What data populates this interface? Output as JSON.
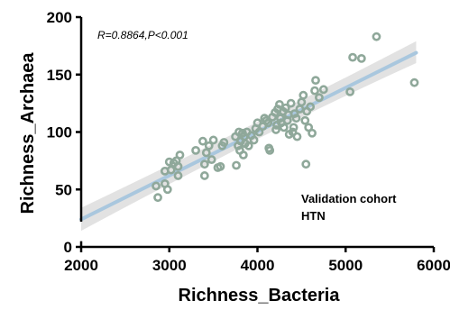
{
  "chart_data": {
    "type": "scatter",
    "title": "",
    "xlabel": "Richness_Bacteria",
    "ylabel": "Richness_Archaea",
    "xlim": [
      2000,
      6000
    ],
    "ylim": [
      0,
      200
    ],
    "xticks": [
      2000,
      3000,
      4000,
      5000,
      6000
    ],
    "yticks": [
      0,
      50,
      100,
      150,
      200
    ],
    "annotation": "R=0.8864,P<0.001",
    "legend": [
      "Validation cohort",
      "HTN"
    ],
    "grid": false,
    "fit": {
      "type": "linear",
      "x_range": [
        2000,
        5800
      ],
      "y_start": 24,
      "y_end": 169,
      "ci_lower_start": 14,
      "ci_upper_start": 34,
      "ci_lower_end": 160,
      "ci_upper_end": 179,
      "ci_lower_mid": 104,
      "ci_upper_mid": 108,
      "x_mid": 4100
    },
    "colors": {
      "points": "#8fa89a",
      "fit_line": "#a9c7de",
      "ci_band": "#d6d6d6"
    },
    "points": [
      {
        "x": 2850,
        "y": 53
      },
      {
        "x": 2870,
        "y": 43
      },
      {
        "x": 2950,
        "y": 55
      },
      {
        "x": 2950,
        "y": 66
      },
      {
        "x": 2980,
        "y": 50
      },
      {
        "x": 3000,
        "y": 74
      },
      {
        "x": 3020,
        "y": 67
      },
      {
        "x": 3050,
        "y": 73
      },
      {
        "x": 3080,
        "y": 75
      },
      {
        "x": 3100,
        "y": 62
      },
      {
        "x": 3120,
        "y": 80
      },
      {
        "x": 3100,
        "y": 70
      },
      {
        "x": 3300,
        "y": 84
      },
      {
        "x": 3380,
        "y": 92
      },
      {
        "x": 3400,
        "y": 72
      },
      {
        "x": 3400,
        "y": 62
      },
      {
        "x": 3420,
        "y": 82
      },
      {
        "x": 3450,
        "y": 88
      },
      {
        "x": 3480,
        "y": 76
      },
      {
        "x": 3500,
        "y": 93
      },
      {
        "x": 3550,
        "y": 69
      },
      {
        "x": 3580,
        "y": 70
      },
      {
        "x": 3600,
        "y": 88
      },
      {
        "x": 3620,
        "y": 91
      },
      {
        "x": 3750,
        "y": 96
      },
      {
        "x": 3760,
        "y": 71
      },
      {
        "x": 3780,
        "y": 88
      },
      {
        "x": 3790,
        "y": 100
      },
      {
        "x": 3800,
        "y": 84
      },
      {
        "x": 3810,
        "y": 92
      },
      {
        "x": 3830,
        "y": 99
      },
      {
        "x": 3840,
        "y": 80
      },
      {
        "x": 3850,
        "y": 96
      },
      {
        "x": 3860,
        "y": 90
      },
      {
        "x": 3880,
        "y": 100
      },
      {
        "x": 3900,
        "y": 88
      },
      {
        "x": 3930,
        "y": 97
      },
      {
        "x": 3960,
        "y": 93
      },
      {
        "x": 3980,
        "y": 103
      },
      {
        "x": 4000,
        "y": 108
      },
      {
        "x": 4020,
        "y": 100
      },
      {
        "x": 4060,
        "y": 105
      },
      {
        "x": 4080,
        "y": 112
      },
      {
        "x": 4100,
        "y": 110
      },
      {
        "x": 4120,
        "y": 108
      },
      {
        "x": 4130,
        "y": 86
      },
      {
        "x": 4140,
        "y": 84
      },
      {
        "x": 4170,
        "y": 113
      },
      {
        "x": 4200,
        "y": 117
      },
      {
        "x": 4210,
        "y": 102
      },
      {
        "x": 4220,
        "y": 106
      },
      {
        "x": 4230,
        "y": 120
      },
      {
        "x": 4250,
        "y": 124
      },
      {
        "x": 4260,
        "y": 112
      },
      {
        "x": 4270,
        "y": 108
      },
      {
        "x": 4290,
        "y": 118
      },
      {
        "x": 4300,
        "y": 104
      },
      {
        "x": 4320,
        "y": 121
      },
      {
        "x": 4340,
        "y": 110
      },
      {
        "x": 4350,
        "y": 115
      },
      {
        "x": 4360,
        "y": 98
      },
      {
        "x": 4380,
        "y": 125
      },
      {
        "x": 4400,
        "y": 100
      },
      {
        "x": 4410,
        "y": 104
      },
      {
        "x": 4420,
        "y": 116
      },
      {
        "x": 4440,
        "y": 112
      },
      {
        "x": 4450,
        "y": 96
      },
      {
        "x": 4480,
        "y": 120
      },
      {
        "x": 4500,
        "y": 126
      },
      {
        "x": 4520,
        "y": 132
      },
      {
        "x": 4540,
        "y": 110
      },
      {
        "x": 4550,
        "y": 72
      },
      {
        "x": 4560,
        "y": 118
      },
      {
        "x": 4580,
        "y": 104
      },
      {
        "x": 4600,
        "y": 122
      },
      {
        "x": 4620,
        "y": 99
      },
      {
        "x": 4650,
        "y": 136
      },
      {
        "x": 4660,
        "y": 145
      },
      {
        "x": 4700,
        "y": 130
      },
      {
        "x": 4750,
        "y": 137
      },
      {
        "x": 5050,
        "y": 135
      },
      {
        "x": 5080,
        "y": 165
      },
      {
        "x": 5180,
        "y": 164
      },
      {
        "x": 5350,
        "y": 183
      },
      {
        "x": 5780,
        "y": 143
      }
    ]
  }
}
